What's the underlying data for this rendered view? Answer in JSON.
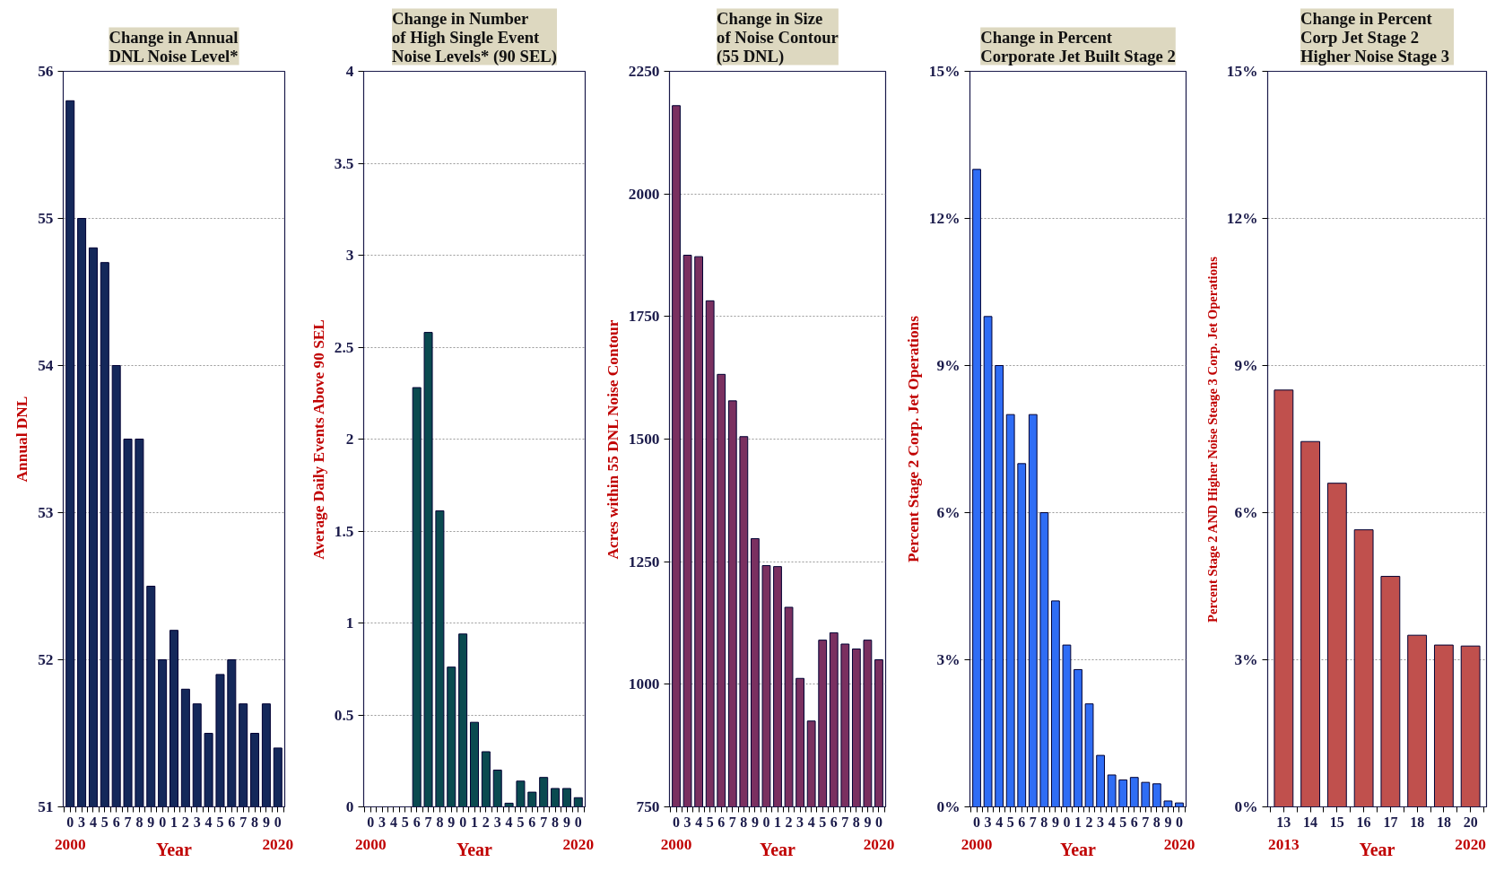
{
  "chart_data": [
    {
      "type": "bar",
      "title": "Change in Annual\nDNL Noise Level*",
      "xlabel": "Year",
      "ylabel": "Annual DNL",
      "categories": [
        "0",
        "3",
        "4",
        "5",
        "6",
        "7",
        "8",
        "9",
        "0",
        "1",
        "2",
        "3",
        "4",
        "5",
        "6",
        "7",
        "8",
        "9",
        "0"
      ],
      "values": [
        55.8,
        55.0,
        54.8,
        54.7,
        54.0,
        53.5,
        53.5,
        52.5,
        52.0,
        52.2,
        51.8,
        51.7,
        51.5,
        51.9,
        52.0,
        51.7,
        51.5,
        51.7,
        51.4
      ],
      "color": "#14285a",
      "ylim": [
        51,
        56
      ],
      "yticks": [
        51,
        52,
        53,
        54,
        55,
        56
      ],
      "grid": "y",
      "annotations": [
        "2000",
        "2020"
      ]
    },
    {
      "type": "bar",
      "title": "Change in Number\nof High Single Event\nNoise Levels* (90 SEL)",
      "xlabel": "Year",
      "ylabel": "Average Daily Events Above 90 SEL",
      "categories": [
        "0",
        "3",
        "4",
        "5",
        "6",
        "7",
        "8",
        "9",
        "0",
        "1",
        "2",
        "3",
        "4",
        "5",
        "6",
        "7",
        "8",
        "9",
        "0"
      ],
      "values": [
        null,
        null,
        null,
        null,
        2.28,
        2.58,
        1.61,
        0.76,
        0.94,
        0.46,
        0.3,
        0.2,
        0.02,
        0.14,
        0.08,
        0.16,
        0.1,
        0.1,
        0.05
      ],
      "color": "#0a4a50",
      "ylim": [
        0,
        4
      ],
      "yticks": [
        0,
        0.5,
        1,
        1.5,
        2,
        2.5,
        3,
        3.5,
        4
      ],
      "grid": "y",
      "annotations": [
        "2000",
        "2020"
      ]
    },
    {
      "type": "bar",
      "title": "Change in Size\nof Noise Contour\n(55 DNL)",
      "xlabel": "Year",
      "ylabel": "Acres within 55 DNL Noise Contour",
      "categories": [
        "0",
        "3",
        "4",
        "5",
        "6",
        "7",
        "8",
        "9",
        "0",
        "1",
        "2",
        "3",
        "4",
        "5",
        "6",
        "7",
        "8",
        "9",
        "0"
      ],
      "values": [
        2180,
        1875,
        1872,
        1782,
        1632,
        1578,
        1505,
        1297,
        1242,
        1240,
        1157,
        1012,
        925,
        1090,
        1105,
        1082,
        1072,
        1090,
        1050
      ],
      "color": "#7a3060",
      "ylim": [
        750,
        2250
      ],
      "yticks": [
        750,
        1000,
        1250,
        1500,
        1750,
        2000,
        2250
      ],
      "grid": "y",
      "annotations": [
        "2000",
        "2020"
      ]
    },
    {
      "type": "bar",
      "title": "Change in Percent\nCorporate Jet Built Stage 2",
      "xlabel": "Year",
      "ylabel": "Percent Stage 2 Corp. Jet Operations",
      "categories": [
        "0",
        "3",
        "4",
        "5",
        "6",
        "7",
        "8",
        "9",
        "0",
        "1",
        "2",
        "3",
        "4",
        "5",
        "6",
        "7",
        "8",
        "9",
        "0"
      ],
      "values": [
        13,
        10,
        9,
        8,
        7,
        8,
        6,
        4.2,
        3.3,
        2.8,
        2.1,
        1.05,
        0.65,
        0.55,
        0.6,
        0.5,
        0.47,
        0.12,
        0.08
      ],
      "color": "#2f6df5",
      "ylim": [
        0,
        15
      ],
      "yticks": [
        {
          "value": 0,
          "label": "0%"
        },
        {
          "value": 3,
          "label": "3%"
        },
        {
          "value": 6,
          "label": "6%"
        },
        {
          "value": 9,
          "label": "9%"
        },
        {
          "value": 12,
          "label": "12%"
        },
        {
          "value": 15,
          "label": "15%"
        }
      ],
      "grid": "y",
      "annotations": [
        "2000",
        "2020"
      ]
    },
    {
      "type": "bar",
      "title": "Change in Percent\nCorp Jet Stage 2\nHigher Noise  Stage 3",
      "xlabel": "Year",
      "ylabel": "Percent Stage 2 AND Higher Noise Steage 3 Corp. Jet Operations",
      "categories": [
        "13",
        "14",
        "15",
        "16",
        "17",
        "18",
        "18",
        "20"
      ],
      "values": [
        8.5,
        7.45,
        6.6,
        5.65,
        4.7,
        3.5,
        3.3,
        3.28
      ],
      "color": "#c0504d",
      "ylim": [
        0,
        15
      ],
      "yticks": [
        {
          "value": 0,
          "label": "0%"
        },
        {
          "value": 3,
          "label": "3%"
        },
        {
          "value": 6,
          "label": "6%"
        },
        {
          "value": 9,
          "label": "9%"
        },
        {
          "value": 12,
          "label": "12%"
        },
        {
          "value": 15,
          "label": "15%"
        }
      ],
      "grid": "y",
      "annotations": [
        "2013",
        "2020"
      ]
    }
  ]
}
